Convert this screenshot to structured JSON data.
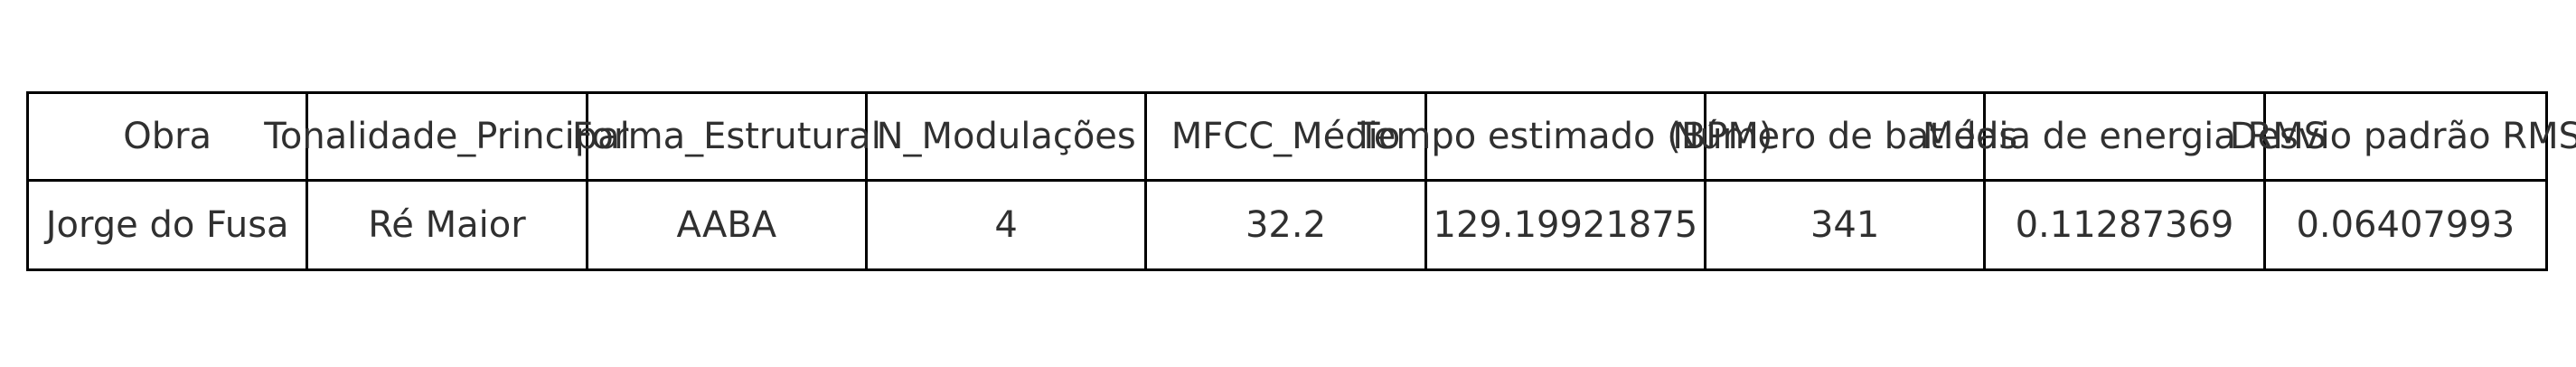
{
  "table": {
    "headers": [
      "Obra",
      "Tonalidade_Principal",
      "Forma_Estrutural",
      "N_Modulações",
      "MFCC_Médio",
      "Tempo estimado (BPM)",
      "Número de batidas",
      "Média de energia RMS",
      "Desvio padrão RMS"
    ],
    "rows": [
      [
        "Jorge do Fusa",
        "Ré Maior",
        "AABA",
        "4",
        "32.2",
        "129.19921875",
        "341",
        "0.11287369",
        "0.06407993"
      ]
    ]
  }
}
